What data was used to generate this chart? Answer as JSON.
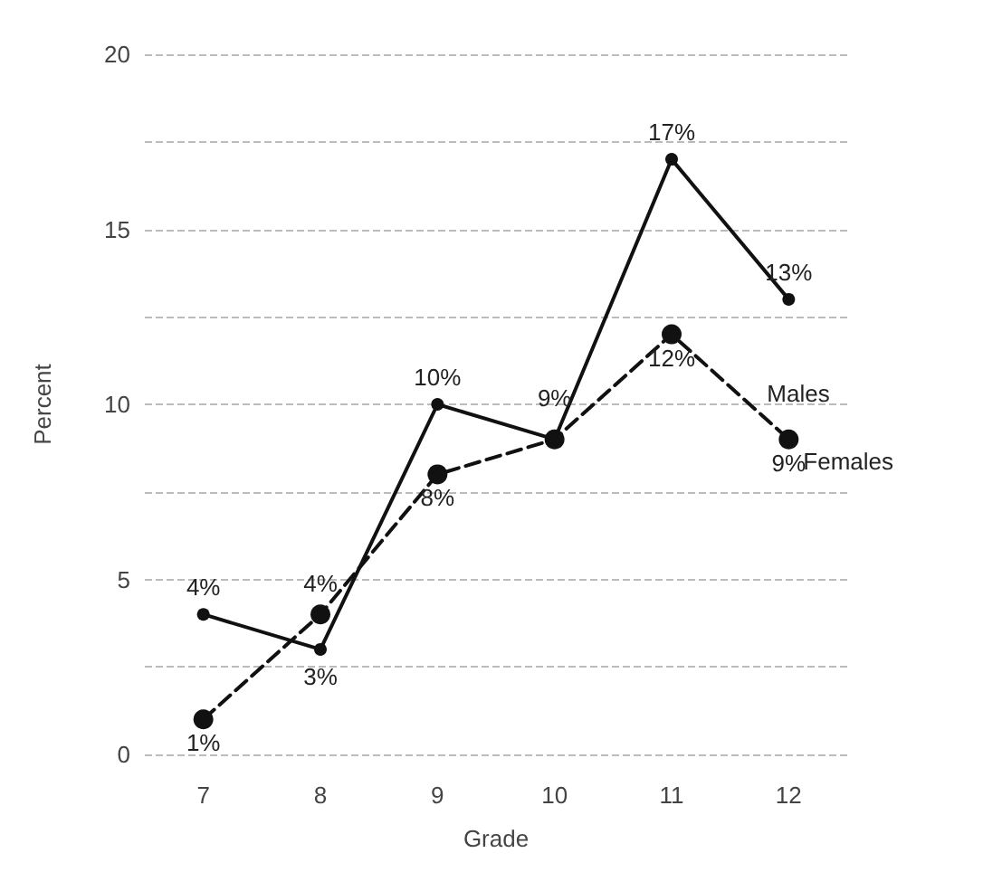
{
  "chart_data": {
    "type": "line",
    "xlabel": "Grade",
    "ylabel": "Percent",
    "categories": [
      "7",
      "8",
      "9",
      "10",
      "11",
      "12"
    ],
    "series": [
      {
        "name": "Males",
        "color": "#111111",
        "line_style": "solid",
        "values": [
          4,
          3,
          10,
          9,
          17,
          13
        ],
        "value_labels": [
          "4%",
          "3%",
          "10%",
          "9%",
          "17%",
          "13%"
        ]
      },
      {
        "name": "Females",
        "color": "#111111",
        "line_style": "dashed",
        "values": [
          1,
          4,
          8,
          9,
          12,
          9
        ],
        "value_labels": [
          "1%",
          "4%",
          "8%",
          null,
          "12%",
          "9%"
        ]
      }
    ],
    "ylim": [
      0,
      20
    ],
    "yticks": [
      0,
      {
        "value": 2.5,
        "label": null
      },
      5,
      {
        "value": 7.5,
        "label": null
      },
      10,
      {
        "value": 12.5,
        "label": null
      },
      15,
      {
        "value": 17.5,
        "label": null
      },
      20
    ],
    "grid": "y",
    "legend": false,
    "marker": "circle"
  }
}
